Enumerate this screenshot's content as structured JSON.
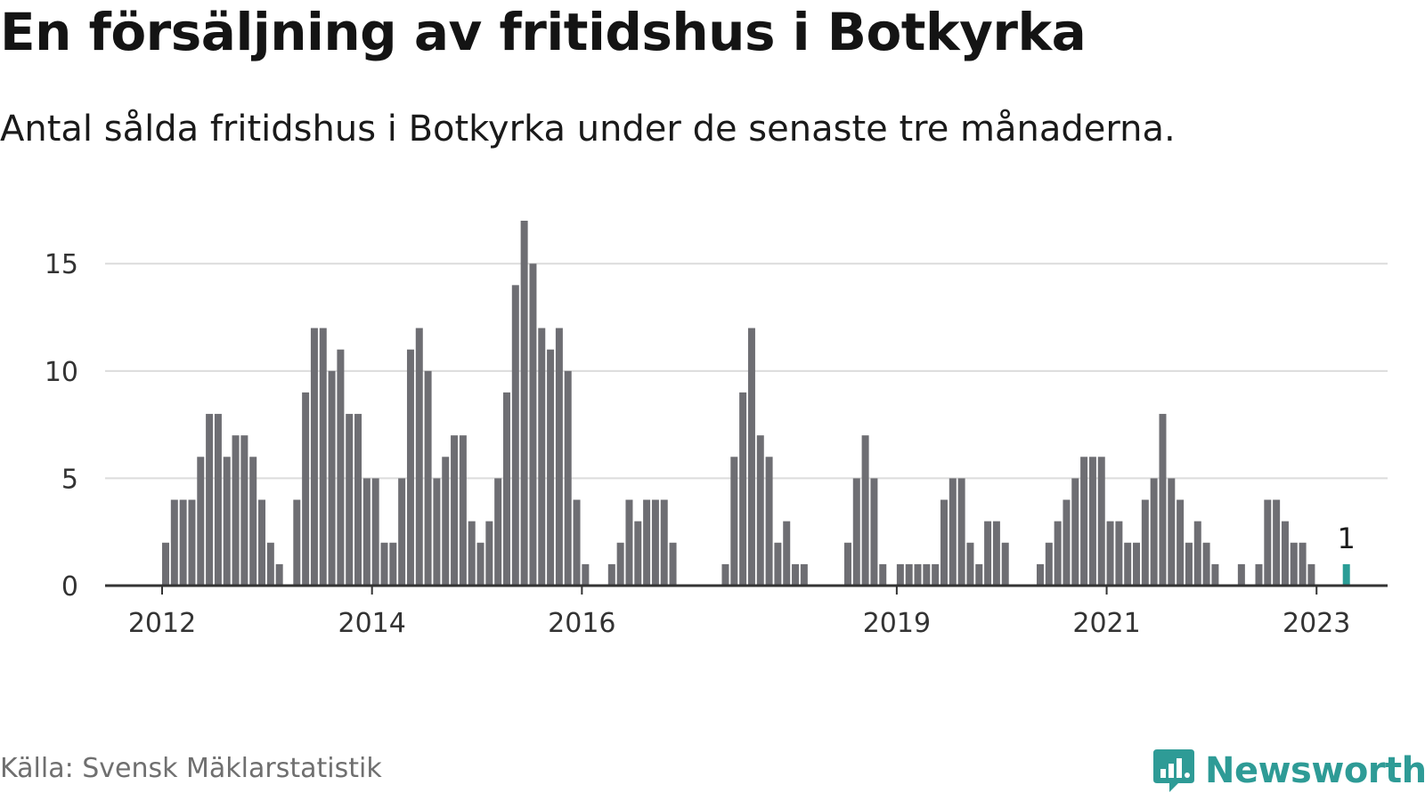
{
  "title": "En försäljning av fritidshus i Botkyrka",
  "subtitle": "Antal sålda fritidshus i Botkyrka under de senaste tre månaderna.",
  "source": "Källa: Svensk Mäklarstatistik",
  "brand": "Newsworthy",
  "colors": {
    "bar": "#6e6e73",
    "highlight": "#2a9d96",
    "grid": "#dcdcdc",
    "axis": "#333333",
    "brand": "#2e9b96"
  },
  "chart_data": {
    "type": "bar",
    "title": "En försäljning av fritidshus i Botkyrka",
    "subtitle": "Antal sålda fritidshus i Botkyrka under de senaste tre månaderna.",
    "xlabel": "",
    "ylabel": "",
    "ylim": [
      0,
      17
    ],
    "yticks": [
      0,
      5,
      10,
      15
    ],
    "x_tick_labels": [
      "2012",
      "2014",
      "2016",
      "2019",
      "2021",
      "2023"
    ],
    "grid": true,
    "start_period": "2012-01",
    "values": [
      2,
      4,
      4,
      4,
      6,
      8,
      8,
      6,
      7,
      7,
      6,
      4,
      2,
      1,
      0,
      4,
      9,
      12,
      12,
      10,
      11,
      8,
      8,
      5,
      5,
      2,
      2,
      5,
      11,
      12,
      10,
      5,
      6,
      7,
      7,
      3,
      2,
      3,
      5,
      9,
      14,
      17,
      15,
      12,
      11,
      12,
      10,
      4,
      1,
      0,
      0,
      1,
      2,
      4,
      3,
      4,
      4,
      4,
      2,
      0,
      0,
      0,
      0,
      0,
      1,
      6,
      9,
      12,
      7,
      6,
      2,
      3,
      1,
      1,
      0,
      0,
      0,
      0,
      2,
      5,
      7,
      5,
      1,
      0,
      1,
      1,
      1,
      1,
      1,
      4,
      5,
      5,
      2,
      1,
      3,
      3,
      2,
      0,
      0,
      0,
      1,
      2,
      3,
      4,
      5,
      6,
      6,
      6,
      3,
      3,
      2,
      2,
      4,
      5,
      8,
      5,
      4,
      2,
      3,
      2,
      1,
      0,
      0,
      1,
      0,
      1,
      4,
      4,
      3,
      2,
      2,
      1,
      0,
      0,
      0,
      1
    ],
    "highlight_last": true,
    "annotation": "1"
  }
}
